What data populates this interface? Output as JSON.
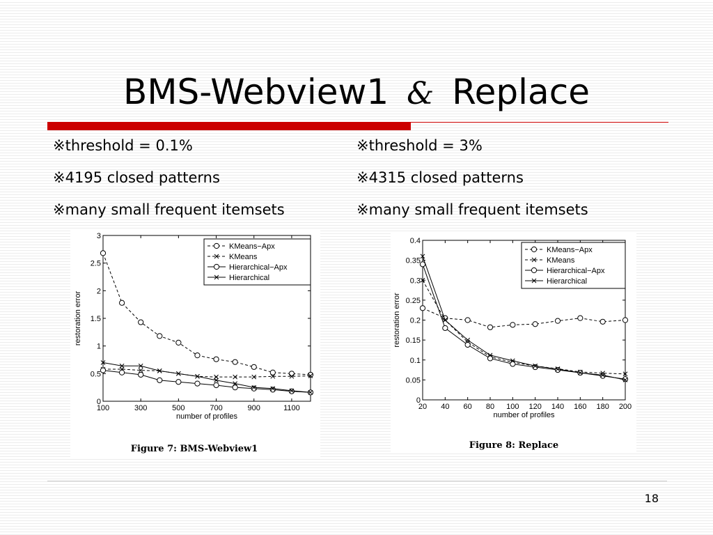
{
  "slide": {
    "title_left": "BMS-Webview1",
    "title_amp": "&",
    "title_right": "Replace",
    "page_number": "18",
    "bullet_mark": "※"
  },
  "left_bullets": [
    "threshold = 0.1%",
    "4195 closed patterns",
    "many small frequent itemsets"
  ],
  "right_bullets": [
    "threshold = 3%",
    "4315 closed patterns",
    "many small frequent itemsets"
  ],
  "chart_data": [
    {
      "type": "line",
      "caption": "Figure 7:  BMS-Webview1",
      "xlabel": "number of profiles",
      "ylabel": "restoration error",
      "xlim": [
        100,
        1200
      ],
      "ylim": [
        0,
        3
      ],
      "xticks": [
        100,
        300,
        500,
        700,
        900,
        1100
      ],
      "yticks": [
        0,
        0.5,
        1,
        1.5,
        2,
        2.5,
        3
      ],
      "ytick_labels": [
        "0",
        "0.5",
        "1",
        "1.5",
        "2",
        "2.5",
        "3"
      ],
      "legend_position": "top-right",
      "x": [
        100,
        200,
        300,
        400,
        500,
        600,
        700,
        800,
        900,
        1000,
        1100,
        1200
      ],
      "series": [
        {
          "name": "KMeans−Apx",
          "marker": "o",
          "dash": true,
          "values": [
            2.68,
            1.78,
            1.43,
            1.18,
            1.06,
            0.83,
            0.76,
            0.71,
            0.62,
            0.52,
            0.5,
            0.48
          ]
        },
        {
          "name": "KMeans",
          "marker": "x",
          "dash": true,
          "values": [
            0.58,
            0.58,
            0.56,
            0.55,
            0.5,
            0.45,
            0.44,
            0.44,
            0.44,
            0.45,
            0.45,
            0.46
          ]
        },
        {
          "name": "Hierarchical−Apx",
          "marker": "o",
          "dash": false,
          "values": [
            0.56,
            0.52,
            0.48,
            0.38,
            0.35,
            0.32,
            0.29,
            0.25,
            0.23,
            0.21,
            0.18,
            0.16
          ]
        },
        {
          "name": "Hierarchical",
          "marker": "x",
          "dash": false,
          "values": [
            0.7,
            0.64,
            0.64,
            0.55,
            0.5,
            0.45,
            0.38,
            0.32,
            0.25,
            0.23,
            0.19,
            0.16
          ]
        }
      ]
    },
    {
      "type": "line",
      "caption": "Figure 8:  Replace",
      "xlabel": "number of profiles",
      "ylabel": "restoration error",
      "xlim": [
        20,
        200
      ],
      "ylim": [
        0,
        0.4
      ],
      "xticks": [
        20,
        40,
        60,
        80,
        100,
        120,
        140,
        160,
        180,
        200
      ],
      "yticks": [
        0,
        0.05,
        0.1,
        0.15,
        0.2,
        0.25,
        0.3,
        0.35,
        0.4
      ],
      "ytick_labels": [
        "0",
        "0.05",
        "0.1",
        "0.15",
        "0.2",
        "0.25",
        "0.3",
        "0.35",
        "0.4"
      ],
      "legend_position": "top-right",
      "x": [
        20,
        40,
        60,
        80,
        100,
        120,
        140,
        160,
        180,
        200
      ],
      "series": [
        {
          "name": "KMeans−Apx",
          "marker": "o",
          "dash": true,
          "values": [
            0.23,
            0.205,
            0.2,
            0.182,
            0.188,
            0.19,
            0.198,
            0.205,
            0.196,
            0.2
          ]
        },
        {
          "name": "KMeans",
          "marker": "x",
          "dash": true,
          "values": [
            0.3,
            0.2,
            0.145,
            0.108,
            0.094,
            0.085,
            0.078,
            0.07,
            0.067,
            0.065
          ]
        },
        {
          "name": "Hierarchical−Apx",
          "marker": "o",
          "dash": false,
          "values": [
            0.34,
            0.18,
            0.138,
            0.104,
            0.09,
            0.082,
            0.075,
            0.068,
            0.06,
            0.052
          ]
        },
        {
          "name": "Hierarchical",
          "marker": "x",
          "dash": false,
          "values": [
            0.36,
            0.2,
            0.15,
            0.112,
            0.098,
            0.085,
            0.077,
            0.068,
            0.062,
            0.05
          ]
        }
      ]
    }
  ]
}
